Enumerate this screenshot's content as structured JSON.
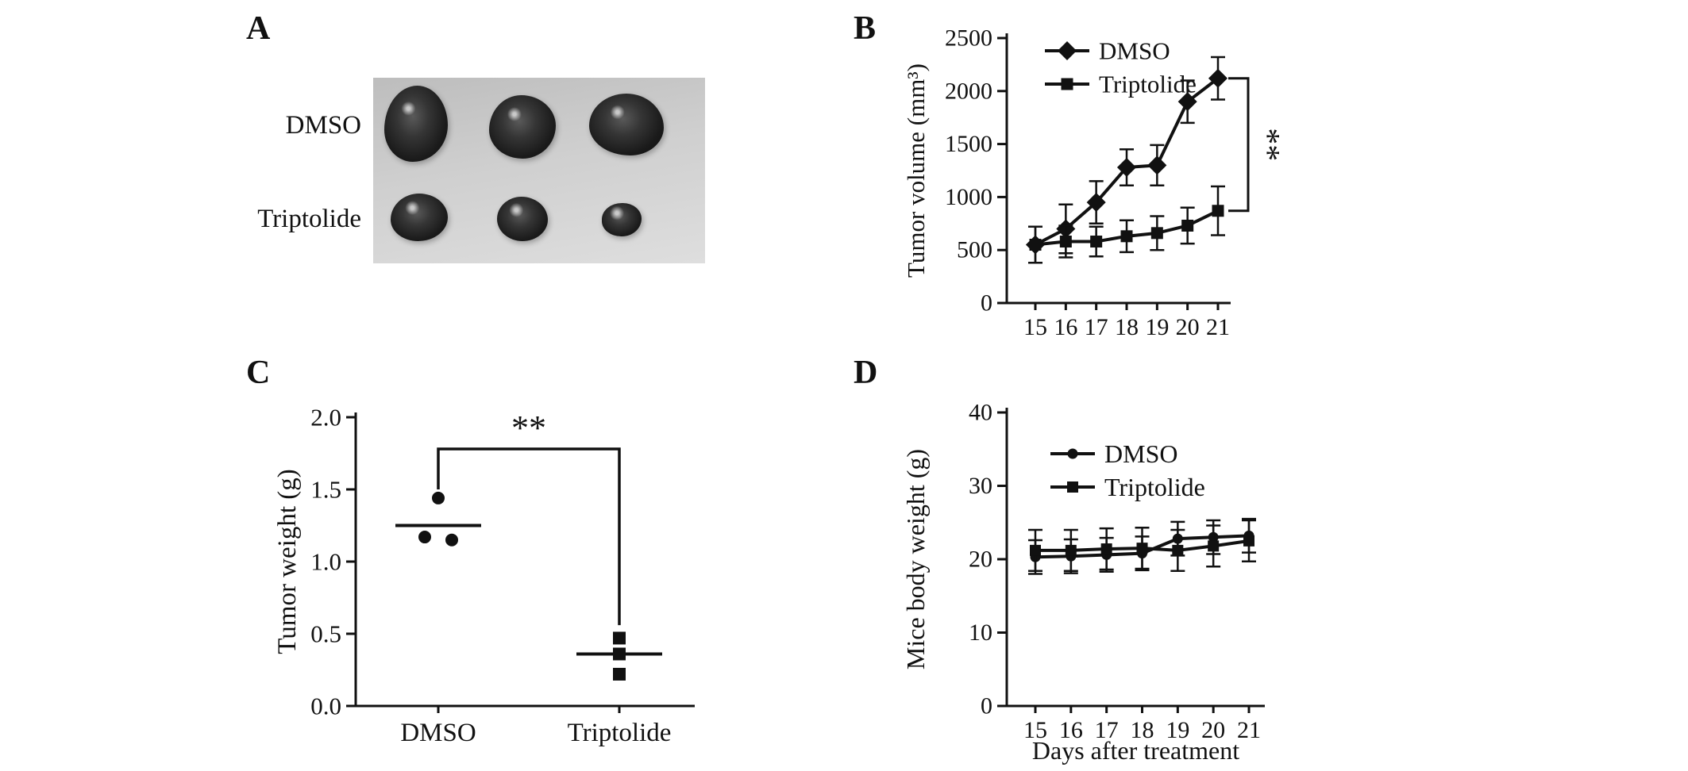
{
  "panels": {
    "A": {
      "letter": "A",
      "row_labels": [
        "DMSO",
        "Triptolide"
      ],
      "specimens_per_row": [
        3,
        3
      ]
    },
    "B": {
      "letter": "B"
    },
    "C": {
      "letter": "C"
    },
    "D": {
      "letter": "D"
    }
  },
  "chart_data": [
    {
      "panel": "B",
      "type": "line",
      "x": [
        15,
        16,
        17,
        18,
        19,
        20,
        21
      ],
      "series": [
        {
          "name": "DMSO",
          "marker": "diamond",
          "values": [
            550,
            700,
            950,
            1280,
            1300,
            1900,
            2120
          ],
          "errors": [
            170,
            230,
            200,
            170,
            190,
            200,
            200
          ]
        },
        {
          "name": "Triptolide",
          "marker": "square",
          "values": [
            550,
            580,
            580,
            630,
            660,
            730,
            870
          ],
          "errors": [
            170,
            150,
            140,
            150,
            160,
            170,
            230
          ]
        }
      ],
      "xlabel": "",
      "ylabel": "Tumor volume (mm³)",
      "ylim": [
        0,
        2500
      ],
      "yticks": [
        "0",
        "500",
        "1000",
        "1500",
        "2000",
        "2500"
      ],
      "legend_position": "top-left",
      "significance": "**"
    },
    {
      "panel": "C",
      "type": "scatter",
      "categories": [
        "DMSO",
        "Triptolide"
      ],
      "groups": [
        {
          "name": "DMSO",
          "marker": "circle",
          "points": [
            1.44,
            1.17,
            1.15
          ],
          "offsets": [
            0,
            -17,
            17
          ],
          "mean": 1.25
        },
        {
          "name": "Triptolide",
          "marker": "square",
          "points": [
            0.47,
            0.36,
            0.22
          ],
          "offsets": [
            0,
            0,
            0
          ],
          "mean": 0.36
        }
      ],
      "xlabel": "",
      "ylabel": "Tumor weight (g)",
      "ylim": [
        0,
        2.0
      ],
      "yticks": [
        "0.0",
        "0.5",
        "1.0",
        "1.5",
        "2.0"
      ],
      "significance": "**"
    },
    {
      "panel": "D",
      "type": "line",
      "x": [
        15,
        16,
        17,
        18,
        19,
        20,
        21
      ],
      "series": [
        {
          "name": "DMSO",
          "marker": "circle",
          "values": [
            20.3,
            20.4,
            20.6,
            20.8,
            22.8,
            23.0,
            23.2
          ],
          "errors": [
            2.3,
            2.3,
            2.3,
            2.3,
            2.3,
            2.3,
            2.3
          ]
        },
        {
          "name": "Triptolide",
          "marker": "square",
          "values": [
            21.2,
            21.2,
            21.4,
            21.5,
            21.2,
            21.8,
            22.5
          ],
          "errors": [
            2.8,
            2.8,
            2.8,
            2.8,
            2.8,
            2.8,
            2.8
          ]
        }
      ],
      "xlabel": "Days after treatment",
      "ylabel": "Mice body weight (g)",
      "ylim": [
        0,
        40
      ],
      "yticks": [
        "0",
        "10",
        "20",
        "30",
        "40"
      ],
      "legend_position": "top-left",
      "significance": ""
    }
  ]
}
